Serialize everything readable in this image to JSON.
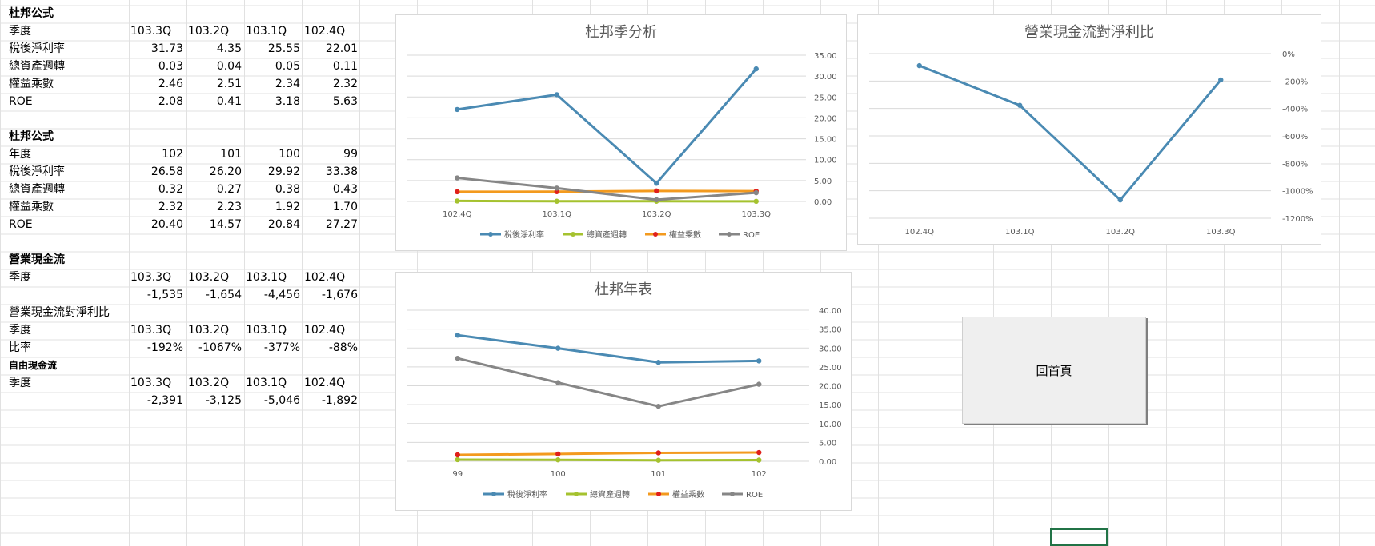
{
  "sheet": {
    "sec1": {
      "title": "杜邦公式",
      "header_label": "季度",
      "headers": [
        "103.3Q",
        "103.2Q",
        "103.1Q",
        "102.4Q"
      ],
      "rows": [
        {
          "label": "稅後淨利率",
          "values": [
            "31.73",
            "4.35",
            "25.55",
            "22.01"
          ]
        },
        {
          "label": "總資產週轉",
          "values": [
            "0.03",
            "0.04",
            "0.05",
            "0.11"
          ]
        },
        {
          "label": "權益乘數",
          "values": [
            "2.46",
            "2.51",
            "2.34",
            "2.32"
          ]
        },
        {
          "label": "ROE",
          "values": [
            "2.08",
            "0.41",
            "3.18",
            "5.63"
          ]
        }
      ]
    },
    "sec2": {
      "title": "杜邦公式",
      "header_label": "年度",
      "headers": [
        "102",
        "101",
        "100",
        "99"
      ],
      "rows": [
        {
          "label": "稅後淨利率",
          "values": [
            "26.58",
            "26.20",
            "29.92",
            "33.38"
          ]
        },
        {
          "label": "總資產週轉",
          "values": [
            "0.32",
            "0.27",
            "0.38",
            "0.43"
          ]
        },
        {
          "label": "權益乘數",
          "values": [
            "2.32",
            "2.23",
            "1.92",
            "1.70"
          ]
        },
        {
          "label": "ROE",
          "values": [
            "20.40",
            "14.57",
            "20.84",
            "27.27"
          ]
        }
      ]
    },
    "sec3": {
      "title": "營業現金流",
      "header_label": "季度",
      "headers": [
        "103.3Q",
        "103.2Q",
        "103.1Q",
        "102.4Q"
      ],
      "values": [
        "-1,535",
        "-1,654",
        "-4,456",
        "-1,676"
      ]
    },
    "sec4": {
      "title": "營業現金流對淨利比",
      "header_label": "季度",
      "headers": [
        "103.3Q",
        "103.2Q",
        "103.1Q",
        "102.4Q"
      ],
      "ratio_label": "比率",
      "values": [
        "-192%",
        "-1067%",
        "-377%",
        "-88%"
      ]
    },
    "sec5": {
      "title": "自由現金流",
      "header_label": "季度",
      "headers": [
        "103.3Q",
        "103.2Q",
        "103.1Q",
        "102.4Q"
      ],
      "values": [
        "-2,391",
        "-3,125",
        "-5,046",
        "-1,892"
      ]
    }
  },
  "button": {
    "label": "回首頁"
  },
  "colors": {
    "blue": "#4a8ab3",
    "green": "#a5c22f",
    "orange": "#f39a1e",
    "orange_marker": "#e0201b",
    "gray": "#868686"
  },
  "chart_data": [
    {
      "type": "line",
      "title": "杜邦季分析",
      "categories": [
        "102.4Q",
        "103.1Q",
        "103.2Q",
        "103.3Q"
      ],
      "ylim": [
        0,
        35
      ],
      "yticks": [
        "0.00",
        "5.00",
        "10.00",
        "15.00",
        "20.00",
        "25.00",
        "30.00",
        "35.00"
      ],
      "y_axis_side": "right",
      "grid": true,
      "legend": "bottom",
      "series": [
        {
          "name": "稅後淨利率",
          "values": [
            22.01,
            25.55,
            4.35,
            31.73
          ]
        },
        {
          "name": "總資產週轉",
          "values": [
            0.11,
            0.05,
            0.04,
            0.03
          ]
        },
        {
          "name": "權益乘數",
          "values": [
            2.32,
            2.34,
            2.51,
            2.46
          ]
        },
        {
          "name": "ROE",
          "values": [
            5.63,
            3.18,
            0.41,
            2.08
          ]
        }
      ]
    },
    {
      "type": "line",
      "title": "營業現金流對淨利比",
      "categories": [
        "102.4Q",
        "103.1Q",
        "103.2Q",
        "103.3Q"
      ],
      "ylim": [
        -1200,
        0
      ],
      "yticks": [
        "0%",
        "-200%",
        "-400%",
        "-600%",
        "-800%",
        "-1000%",
        "-1200%"
      ],
      "y_axis_side": "right",
      "grid": true,
      "legend": "none",
      "series": [
        {
          "name": "",
          "values": [
            -88,
            -377,
            -1067,
            -192
          ]
        }
      ]
    },
    {
      "type": "line",
      "title": "杜邦年表",
      "categories": [
        "99",
        "100",
        "101",
        "102"
      ],
      "ylim": [
        0,
        40
      ],
      "yticks": [
        "0.00",
        "5.00",
        "10.00",
        "15.00",
        "20.00",
        "25.00",
        "30.00",
        "35.00",
        "40.00"
      ],
      "y_axis_side": "right",
      "grid": true,
      "legend": "bottom",
      "series": [
        {
          "name": "稅後淨利率",
          "values": [
            33.38,
            29.92,
            26.2,
            26.58
          ]
        },
        {
          "name": "總資產週轉",
          "values": [
            0.43,
            0.38,
            0.27,
            0.32
          ]
        },
        {
          "name": "權益乘數",
          "values": [
            1.7,
            1.92,
            2.23,
            2.32
          ]
        },
        {
          "name": "ROE",
          "values": [
            27.27,
            20.84,
            14.57,
            20.4
          ]
        }
      ]
    }
  ]
}
